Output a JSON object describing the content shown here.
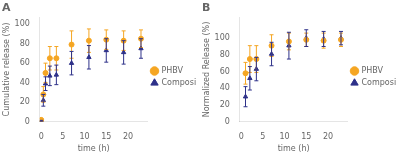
{
  "chart_data": [
    {
      "type": "scatter",
      "title": "A",
      "xlabel": "time (h)",
      "ylabel": "Cumulative release (%)",
      "xlim": [
        -0.3,
        24.5
      ],
      "ylim": [
        0,
        107
      ],
      "xticks": [
        0,
        5,
        10,
        15,
        20
      ],
      "yticks": [
        0,
        20,
        40,
        60,
        80,
        100
      ],
      "grid": false,
      "legend": "right",
      "series": [
        {
          "name": "PHBV",
          "color": "#F5A623",
          "marker": "circle",
          "x": [
            0.0,
            0.5,
            1.0,
            2.0,
            3.5,
            7.0,
            11.0,
            15.0,
            19.0,
            23.0
          ],
          "values": [
            2.0,
            28.0,
            50.0,
            65.0,
            65.0,
            79.0,
            83.0,
            84.0,
            83.0,
            85.0
          ],
          "yerr": [
            1.0,
            8.0,
            10.0,
            12.0,
            12.0,
            14.0,
            12.0,
            10.0,
            10.0,
            9.0
          ]
        },
        {
          "name": "Composite",
          "color": "#2E3189",
          "marker": "triangle",
          "x": [
            0.0,
            0.5,
            1.0,
            2.0,
            3.5,
            7.0,
            11.0,
            15.0,
            19.0,
            23.0
          ],
          "values": [
            1.0,
            22.0,
            39.0,
            47.0,
            48.0,
            60.0,
            66.0,
            73.0,
            71.0,
            75.0
          ],
          "yerr": [
            0.5,
            6.0,
            7.0,
            10.0,
            10.0,
            12.0,
            12.0,
            12.0,
            12.0,
            10.0
          ]
        }
      ]
    },
    {
      "type": "scatter",
      "title": "B",
      "xlabel": "time (h)",
      "ylabel": "Normalized Release (%)",
      "xlim": [
        -0.3,
        24.5
      ],
      "ylim": [
        0,
        125
      ],
      "xticks": [
        0,
        5,
        10,
        15,
        20
      ],
      "yticks": [
        0,
        20,
        40,
        60,
        80,
        100
      ],
      "grid": false,
      "legend": "right",
      "series": [
        {
          "name": "PHBV",
          "color": "#F5A623",
          "marker": "circle",
          "x": [
            1.0,
            2.0,
            3.5,
            7.0,
            11.0,
            15.0,
            19.0,
            23.0
          ],
          "values": [
            58.0,
            75.0,
            75.0,
            91.0,
            96.0,
            98.0,
            97.0,
            98.0
          ],
          "yerr": [
            13.0,
            16.0,
            16.0,
            13.0,
            10.0,
            8.0,
            9.0,
            8.0
          ]
        },
        {
          "name": "Composite",
          "color": "#2E3189",
          "marker": "triangle",
          "x": [
            1.0,
            2.0,
            3.5,
            7.0,
            11.0,
            15.0,
            19.0,
            23.0
          ],
          "values": [
            30.0,
            52.0,
            63.0,
            81.0,
            91.0,
            100.0,
            99.0,
            100.0
          ],
          "yerr": [
            12.0,
            14.0,
            14.0,
            14.0,
            16.0,
            10.0,
            9.0,
            8.0
          ]
        }
      ]
    }
  ]
}
